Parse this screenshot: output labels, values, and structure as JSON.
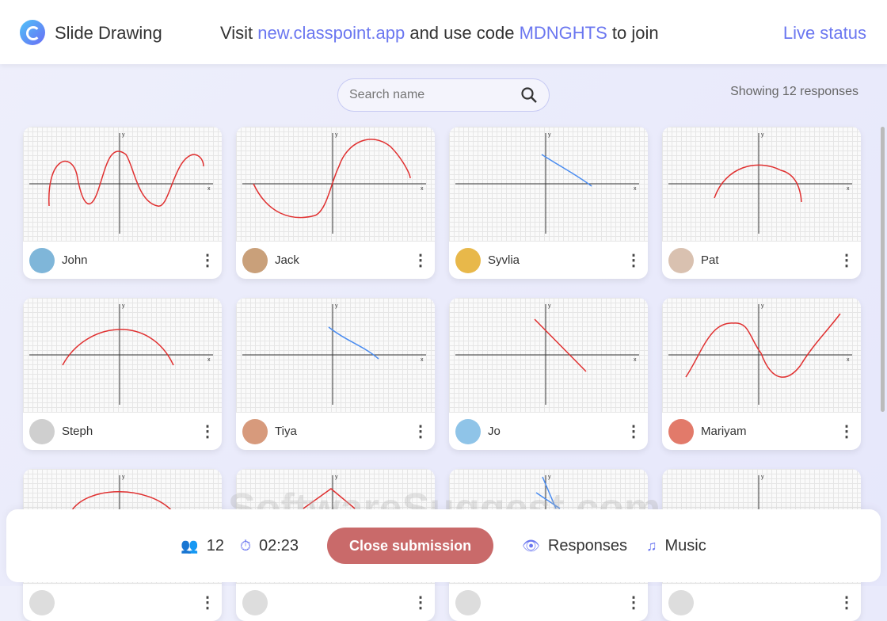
{
  "header": {
    "title": "Slide Drawing",
    "visit": "Visit",
    "url": "new.classpoint.app",
    "use_code": "and use code",
    "code": "MDNGHTS",
    "to_join": "to join",
    "live_status": "Live status"
  },
  "search": {
    "placeholder": "Search name",
    "value": ""
  },
  "showing": "Showing 12 responses",
  "cards": [
    {
      "name": "John",
      "avatar_color": "#7fb6d9"
    },
    {
      "name": "Jack",
      "avatar_color": "#c9a07a"
    },
    {
      "name": "Syvlia",
      "avatar_color": "#e8b84a"
    },
    {
      "name": "Pat",
      "avatar_color": "#d9c1b0"
    },
    {
      "name": "Steph",
      "avatar_color": "#cfcfcf"
    },
    {
      "name": "Tiya",
      "avatar_color": "#d79a7c"
    },
    {
      "name": "Jo",
      "avatar_color": "#8fc4e8"
    },
    {
      "name": "Mariyam",
      "avatar_color": "#e27a6a"
    },
    {
      "name": ""
    },
    {
      "name": ""
    },
    {
      "name": ""
    },
    {
      "name": ""
    }
  ],
  "bottom": {
    "participants": "12",
    "timer": "02:23",
    "close": "Close submission",
    "responses": "Responses",
    "music": "Music"
  },
  "colors": {
    "accent": "#6b77f0",
    "close": "#c96a6a",
    "stroke_red": "#e03030",
    "stroke_blue": "#4a8cf0"
  },
  "watermark": "SoftwareSuggest.com"
}
